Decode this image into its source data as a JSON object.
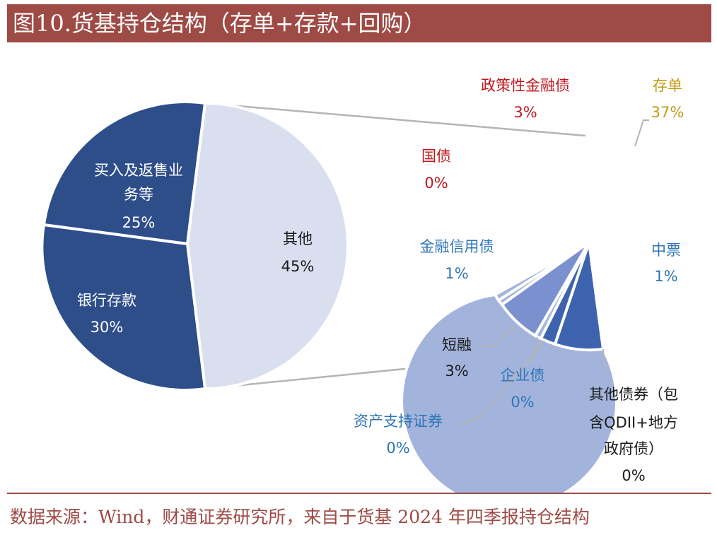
{
  "title": "图10.货基持仓结构（存单+存款+回购）",
  "source": "数据来源：Wind，财通证券研究所，来自于货基 2024 年四季报持仓结构",
  "colors": {
    "header_bg": "#9e4a45",
    "dark_blue": "#2e4e8a",
    "light_lavender": "#dadff0",
    "right_main": "#a3b4dc",
    "red_label": "#c0181f",
    "gold_label": "#c49a14",
    "blue_label": "#2e75b6"
  },
  "chart_data": [
    {
      "type": "pie",
      "name": "",
      "slices": [
        {
          "label": "其他",
          "value": 45,
          "display": "45%",
          "color": "#dadff0"
        },
        {
          "label": "银行存款",
          "value": 30,
          "display": "30%",
          "color": "#2e4e8a"
        },
        {
          "label": "买入及返售业务等",
          "value": 25,
          "display": "25%",
          "color": "#2e4e8a"
        }
      ]
    },
    {
      "type": "pie",
      "name": "",
      "slices": [
        {
          "label": "存单",
          "value": 37,
          "display": "37%",
          "color": "#a3b4dc"
        },
        {
          "label": "中票",
          "value": 1,
          "display": "1%",
          "color": "#3e63ae"
        },
        {
          "label": "其他债券（包含QDII+地方政府债）",
          "value": 0,
          "display": "0%",
          "color": "#a3b4dc"
        },
        {
          "label": "资产支持证券",
          "value": 0,
          "display": "0%",
          "color": "#a3b4dc"
        },
        {
          "label": "企业债",
          "value": 0,
          "display": "0%",
          "color": "#a3b4dc"
        },
        {
          "label": "短融",
          "value": 3,
          "display": "3%",
          "color": "#7b90ce"
        },
        {
          "label": "金融信用债",
          "value": 1,
          "display": "1%",
          "color": "#a3b4dc"
        },
        {
          "label": "国债",
          "value": 0,
          "display": "0%",
          "color": "#a3b4dc"
        },
        {
          "label": "政策性金融债",
          "value": 3,
          "display": "3%",
          "color": "#a3b4dc"
        }
      ]
    }
  ]
}
